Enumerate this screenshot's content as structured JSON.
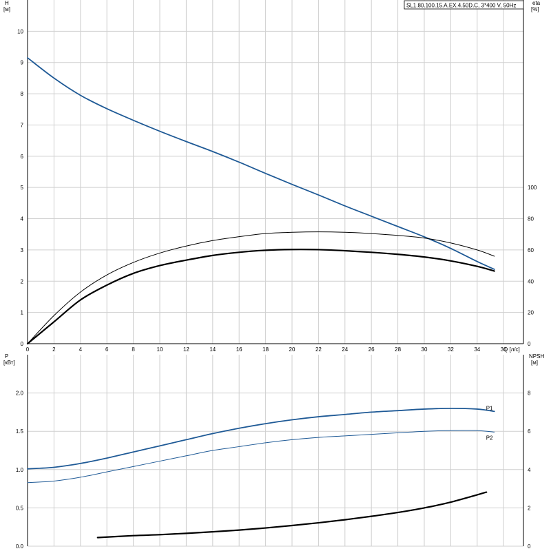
{
  "chart_data": [
    {
      "type": "line",
      "title": "SL1.80.100.15.A.EX.4.50D.C, 3*400 V, 50Hz",
      "x_axis": {
        "label": "Q [л/с]",
        "range": [
          0,
          37.5
        ],
        "ticks": [
          0,
          2,
          4,
          6,
          8,
          10,
          12,
          14,
          16,
          18,
          20,
          22,
          24,
          26,
          28,
          30,
          32,
          34,
          36
        ]
      },
      "left_axis": {
        "name": "H",
        "unit": "[м]",
        "range": [
          0,
          11
        ],
        "ticks": [
          0,
          1,
          2,
          3,
          4,
          5,
          6,
          7,
          8,
          9,
          10
        ]
      },
      "right_axis": {
        "name": "eta",
        "unit": "[%]",
        "range": [
          0,
          220
        ],
        "ticks": [
          0,
          20,
          40,
          60,
          80,
          100
        ]
      },
      "grid": true,
      "series": [
        {
          "name": "",
          "axis": "left",
          "color": "#1f5a96",
          "width": 1.8,
          "x": [
            0,
            2,
            4,
            6,
            8,
            10,
            12,
            14,
            16,
            18,
            20,
            22,
            24,
            26,
            28,
            30,
            32,
            34,
            35.3
          ],
          "y": [
            9.15,
            8.5,
            7.95,
            7.52,
            7.15,
            6.8,
            6.47,
            6.15,
            5.81,
            5.45,
            5.1,
            4.76,
            4.41,
            4.08,
            3.75,
            3.42,
            3.05,
            2.63,
            2.38
          ]
        },
        {
          "name": "",
          "axis": "right",
          "color": "#000000",
          "width": 1,
          "x": [
            0,
            2,
            4,
            6,
            8,
            10,
            12,
            14,
            16,
            18,
            20,
            22,
            24,
            26,
            28,
            30,
            32,
            34,
            35.3
          ],
          "y": [
            0,
            18,
            33,
            44,
            52,
            58,
            62.5,
            66,
            68.5,
            70.5,
            71.3,
            71.6,
            71.3,
            70.5,
            69.3,
            67.6,
            64.5,
            60,
            56
          ]
        },
        {
          "name": "",
          "axis": "right",
          "color": "#000000",
          "width": 2.2,
          "x": [
            0,
            2,
            4,
            6,
            8,
            10,
            12,
            14,
            16,
            18,
            20,
            22,
            24,
            26,
            28,
            30,
            32,
            34,
            35.3
          ],
          "y": [
            0,
            14,
            28,
            37.5,
            45,
            50,
            53.5,
            56.5,
            58.5,
            59.8,
            60.3,
            60.2,
            59.5,
            58.5,
            57.2,
            55.5,
            53,
            49.5,
            46.5
          ]
        }
      ]
    },
    {
      "type": "line",
      "x_axis": {
        "label": "",
        "range": [
          0,
          37.5
        ]
      },
      "left_axis": {
        "name": "P",
        "unit": "[кВт]",
        "range": [
          0,
          2.5
        ],
        "ticks": [
          "0.0",
          "0.5",
          "1.0",
          "1.5",
          "2.0"
        ]
      },
      "right_axis": {
        "name": "NPSH",
        "unit": "[м]",
        "range": [
          0,
          10
        ],
        "ticks": [
          0,
          2,
          4,
          6,
          8
        ]
      },
      "grid": true,
      "series": [
        {
          "name": "P1",
          "axis": "left",
          "color": "#1f5a96",
          "width": 1.8,
          "x": [
            0,
            2,
            4,
            6,
            8,
            10,
            12,
            14,
            16,
            18,
            20,
            22,
            24,
            26,
            28,
            30,
            32,
            34,
            35.3
          ],
          "y": [
            1.01,
            1.03,
            1.08,
            1.15,
            1.23,
            1.31,
            1.39,
            1.47,
            1.54,
            1.6,
            1.65,
            1.69,
            1.72,
            1.75,
            1.77,
            1.79,
            1.8,
            1.79,
            1.76
          ]
        },
        {
          "name": "P2",
          "axis": "left",
          "color": "#1f5a96",
          "width": 1,
          "x": [
            0,
            2,
            4,
            6,
            8,
            10,
            12,
            14,
            16,
            18,
            20,
            22,
            24,
            26,
            28,
            30,
            32,
            34,
            35.3
          ],
          "y": [
            0.83,
            0.85,
            0.9,
            0.97,
            1.04,
            1.11,
            1.18,
            1.25,
            1.3,
            1.35,
            1.39,
            1.42,
            1.44,
            1.46,
            1.48,
            1.5,
            1.51,
            1.51,
            1.49
          ]
        },
        {
          "name": "",
          "axis": "right",
          "color": "#000000",
          "width": 2.2,
          "x": [
            5.3,
            8,
            10,
            12,
            14,
            16,
            18,
            20,
            22,
            24,
            26,
            28,
            30,
            32,
            34.7
          ],
          "y": [
            0.45,
            0.55,
            0.6,
            0.67,
            0.75,
            0.84,
            0.95,
            1.08,
            1.22,
            1.38,
            1.56,
            1.76,
            2.0,
            2.3,
            2.82
          ]
        }
      ]
    }
  ]
}
